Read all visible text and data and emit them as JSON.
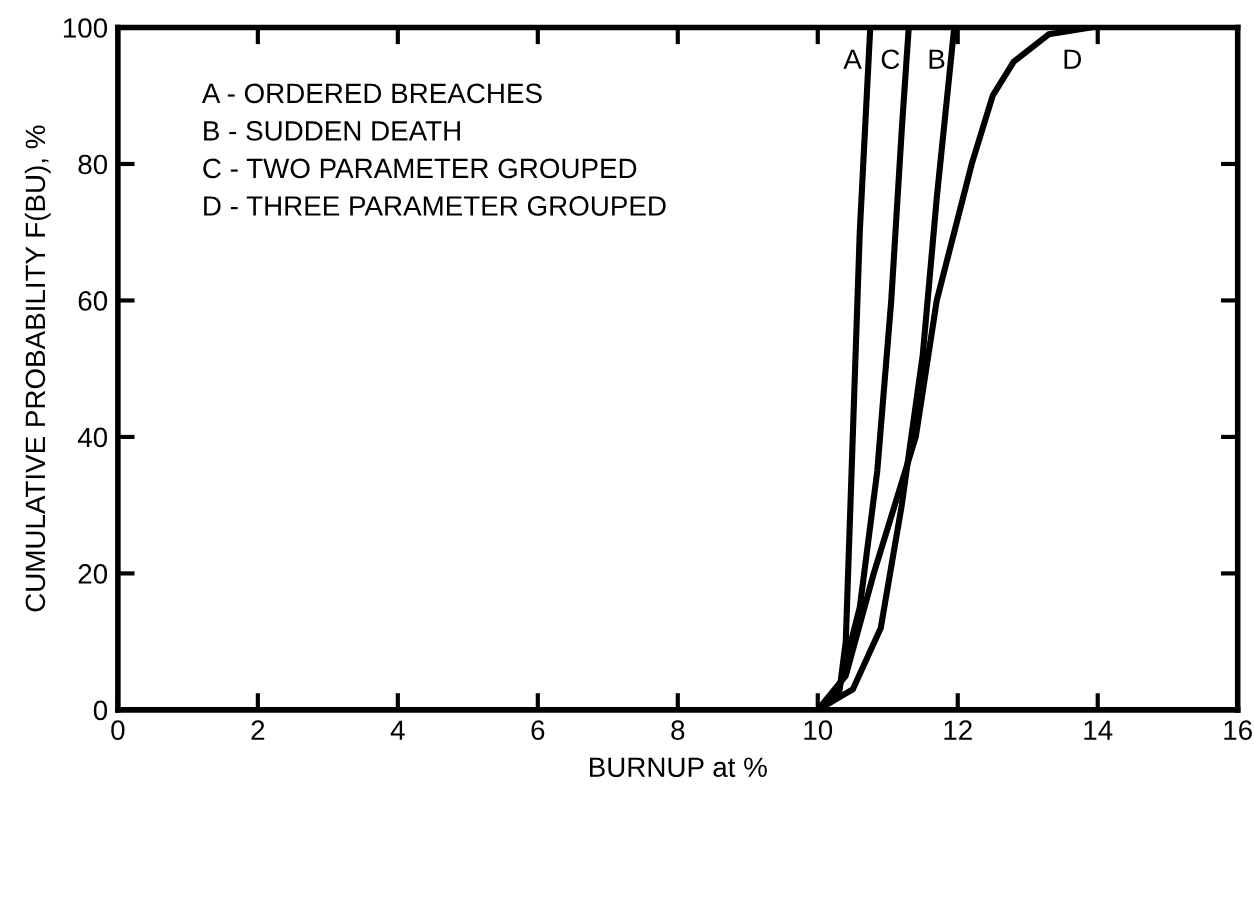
{
  "chart_data": {
    "type": "line",
    "xlabel": "BURNUP at %",
    "ylabel": "CUMULATIVE PROBABILITY F(BU), %",
    "annotations": [
      "A - ORDERED BREACHES",
      "B - SUDDEN DEATH",
      "C - TWO PARAMETER GROUPED",
      "D - THREE PARAMETER GROUPED"
    ],
    "series": [
      {
        "name": "A",
        "color": "#000000",
        "x": [
          10.0,
          10.3,
          10.4,
          10.5,
          10.6,
          10.7,
          10.75
        ],
        "values": [
          0,
          2,
          10,
          40,
          70,
          90,
          100
        ]
      },
      {
        "name": "C",
        "color": "#000000",
        "x": [
          10.0,
          10.3,
          10.6,
          10.85,
          11.05,
          11.2,
          11.3
        ],
        "values": [
          0,
          3,
          15,
          35,
          60,
          85,
          100
        ]
      },
      {
        "name": "B",
        "color": "#000000",
        "x": [
          10.0,
          10.5,
          10.9,
          11.2,
          11.5,
          11.7,
          11.85,
          11.95
        ],
        "values": [
          0,
          3,
          12,
          30,
          52,
          75,
          90,
          100
        ]
      },
      {
        "name": "D",
        "color": "#000000",
        "x": [
          10.0,
          10.4,
          10.8,
          11.4,
          11.7,
          12.2,
          12.5,
          12.8,
          13.3,
          13.9
        ],
        "values": [
          0,
          5,
          20,
          40,
          60,
          80,
          90,
          95,
          99,
          100
        ]
      }
    ],
    "xlim": [
      0,
      16
    ],
    "ylim": [
      0,
      100
    ],
    "xticks": [
      0,
      2,
      4,
      6,
      8,
      10,
      12,
      14,
      16
    ],
    "yticks": [
      0,
      20,
      40,
      60,
      80,
      100
    ],
    "grid": false,
    "legend": "top",
    "marker": "none",
    "line_style": "solid"
  }
}
